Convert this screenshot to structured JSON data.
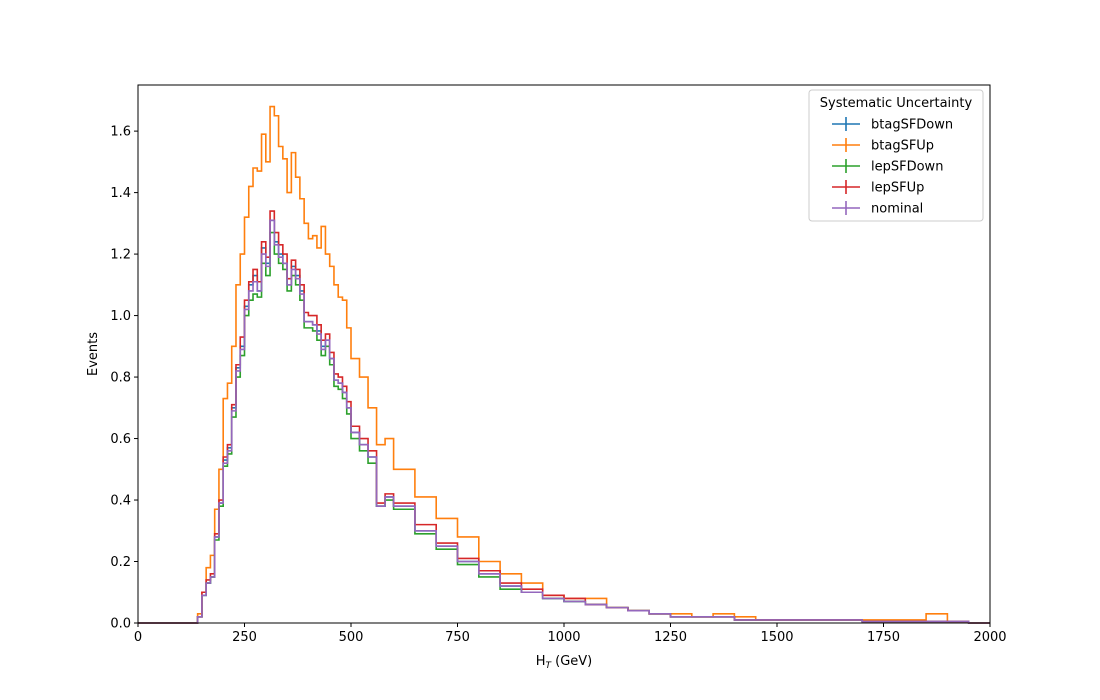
{
  "chart_data": {
    "type": "line",
    "style": "step-histogram",
    "xlabel_main": "H",
    "xlabel_sub": "T",
    "xlabel_unit": " (GeV)",
    "ylabel": "Events",
    "xlim": [
      0,
      2000
    ],
    "ylim": [
      0,
      1.75
    ],
    "xticks": [
      0,
      250,
      500,
      750,
      1000,
      1250,
      1500,
      1750,
      2000
    ],
    "yticks": [
      0.0,
      0.2,
      0.4,
      0.6,
      0.8,
      1.0,
      1.2,
      1.4,
      1.6
    ],
    "xtick_labels": [
      "0",
      "250",
      "500",
      "750",
      "1000",
      "1250",
      "1500",
      "1750",
      "2000"
    ],
    "ytick_labels": [
      "0.0",
      "0.2",
      "0.4",
      "0.6",
      "0.8",
      "1.0",
      "1.2",
      "1.4",
      "1.6"
    ],
    "grid": false,
    "legend": {
      "title": "Systematic Uncertainty",
      "placement": "top-right"
    },
    "bin_width": 10,
    "x": [
      130,
      140,
      150,
      160,
      170,
      180,
      190,
      200,
      210,
      220,
      230,
      240,
      250,
      260,
      270,
      280,
      290,
      300,
      310,
      320,
      330,
      340,
      350,
      360,
      370,
      380,
      390,
      400,
      410,
      420,
      430,
      440,
      450,
      460,
      470,
      480,
      490,
      500,
      520,
      540,
      560,
      580,
      600,
      650,
      700,
      750,
      800,
      850,
      900,
      950,
      1000,
      1050,
      1100,
      1150,
      1200,
      1250,
      1300,
      1350,
      1400,
      1450,
      1500,
      1550,
      1600,
      1650,
      1700,
      1750,
      1800,
      1850,
      1900,
      1950
    ],
    "series": [
      {
        "name": "btagSFDown",
        "color": "#1f77b4",
        "values": [
          0.0,
          0.02,
          0.09,
          0.13,
          0.15,
          0.28,
          0.39,
          0.53,
          0.57,
          0.7,
          0.83,
          0.9,
          1.03,
          1.1,
          1.13,
          1.08,
          1.22,
          1.17,
          1.31,
          1.24,
          1.2,
          1.17,
          1.1,
          1.16,
          1.13,
          1.08,
          0.98,
          0.98,
          0.97,
          0.95,
          0.9,
          0.92,
          0.86,
          0.79,
          0.78,
          0.75,
          0.7,
          0.62,
          0.58,
          0.54,
          0.38,
          0.41,
          0.38,
          0.3,
          0.25,
          0.2,
          0.16,
          0.12,
          0.1,
          0.08,
          0.07,
          0.06,
          0.05,
          0.04,
          0.03,
          0.02,
          0.02,
          0.02,
          0.01,
          0.01,
          0.01,
          0.01,
          0.01,
          0.01,
          0.005,
          0.005,
          0.005,
          0.005,
          0.005,
          0.0
        ]
      },
      {
        "name": "btagSFUp",
        "color": "#ff7f0e",
        "values": [
          0.0,
          0.03,
          0.1,
          0.18,
          0.22,
          0.37,
          0.5,
          0.73,
          0.78,
          0.9,
          1.1,
          1.2,
          1.32,
          1.42,
          1.48,
          1.47,
          1.59,
          1.5,
          1.68,
          1.65,
          1.55,
          1.51,
          1.4,
          1.53,
          1.45,
          1.38,
          1.3,
          1.25,
          1.26,
          1.22,
          1.29,
          1.2,
          1.16,
          1.1,
          1.06,
          1.05,
          0.96,
          0.86,
          0.8,
          0.7,
          0.58,
          0.6,
          0.5,
          0.41,
          0.34,
          0.28,
          0.2,
          0.16,
          0.13,
          0.09,
          0.08,
          0.08,
          0.05,
          0.04,
          0.03,
          0.03,
          0.02,
          0.03,
          0.02,
          0.01,
          0.01,
          0.01,
          0.01,
          0.01,
          0.01,
          0.01,
          0.01,
          0.03,
          0.005,
          0.0
        ]
      },
      {
        "name": "lepSFDown",
        "color": "#2ca02c",
        "values": [
          0.0,
          0.02,
          0.09,
          0.13,
          0.15,
          0.27,
          0.38,
          0.51,
          0.55,
          0.67,
          0.8,
          0.87,
          1.0,
          1.05,
          1.07,
          1.06,
          1.17,
          1.13,
          1.27,
          1.2,
          1.17,
          1.15,
          1.08,
          1.13,
          1.1,
          1.05,
          0.96,
          0.96,
          0.95,
          0.92,
          0.87,
          0.9,
          0.84,
          0.77,
          0.76,
          0.73,
          0.68,
          0.6,
          0.56,
          0.52,
          0.38,
          0.4,
          0.37,
          0.29,
          0.24,
          0.19,
          0.15,
          0.11,
          0.1,
          0.08,
          0.07,
          0.06,
          0.05,
          0.04,
          0.03,
          0.02,
          0.02,
          0.02,
          0.01,
          0.01,
          0.01,
          0.01,
          0.01,
          0.01,
          0.005,
          0.005,
          0.005,
          0.005,
          0.005,
          0.0
        ]
      },
      {
        "name": "lepSFUp",
        "color": "#d62728",
        "values": [
          0.0,
          0.02,
          0.1,
          0.14,
          0.16,
          0.29,
          0.4,
          0.54,
          0.58,
          0.71,
          0.84,
          0.93,
          1.05,
          1.11,
          1.15,
          1.11,
          1.24,
          1.19,
          1.34,
          1.27,
          1.23,
          1.2,
          1.12,
          1.18,
          1.15,
          1.1,
          1.01,
          1.0,
          1.0,
          0.97,
          0.92,
          0.94,
          0.88,
          0.81,
          0.8,
          0.77,
          0.72,
          0.64,
          0.6,
          0.56,
          0.39,
          0.42,
          0.39,
          0.32,
          0.26,
          0.21,
          0.17,
          0.13,
          0.11,
          0.09,
          0.08,
          0.06,
          0.05,
          0.04,
          0.03,
          0.02,
          0.02,
          0.02,
          0.01,
          0.01,
          0.01,
          0.01,
          0.01,
          0.01,
          0.005,
          0.005,
          0.005,
          0.005,
          0.005,
          0.0
        ]
      },
      {
        "name": "nominal",
        "color": "#9467bd",
        "values": [
          0.0,
          0.02,
          0.09,
          0.13,
          0.15,
          0.28,
          0.39,
          0.52,
          0.56,
          0.69,
          0.82,
          0.89,
          1.02,
          1.08,
          1.11,
          1.08,
          1.2,
          1.16,
          1.31,
          1.23,
          1.19,
          1.17,
          1.1,
          1.15,
          1.12,
          1.07,
          0.98,
          0.98,
          0.97,
          0.94,
          0.89,
          0.92,
          0.86,
          0.79,
          0.78,
          0.75,
          0.7,
          0.62,
          0.58,
          0.54,
          0.38,
          0.41,
          0.38,
          0.3,
          0.25,
          0.2,
          0.16,
          0.12,
          0.1,
          0.08,
          0.07,
          0.06,
          0.05,
          0.04,
          0.03,
          0.02,
          0.02,
          0.02,
          0.01,
          0.01,
          0.01,
          0.01,
          0.01,
          0.01,
          0.005,
          0.005,
          0.005,
          0.005,
          0.005,
          0.0
        ]
      }
    ]
  }
}
